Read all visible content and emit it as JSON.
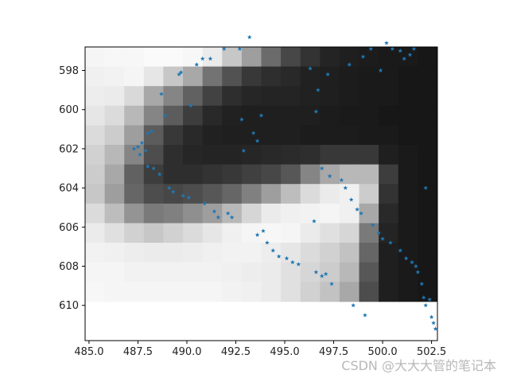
{
  "chart_data": {
    "type": "scatter",
    "title": "",
    "xlabel": "",
    "ylabel": "",
    "xlim": [
      484.8,
      502.8
    ],
    "ylim": [
      611.8,
      596.8
    ],
    "y_inverted": true,
    "grid": false,
    "legend": "none",
    "x_ticks": [
      485.0,
      487.5,
      490.0,
      492.5,
      495.0,
      497.5,
      500.0,
      502.5
    ],
    "x_tick_labels": [
      "485.0",
      "487.5",
      "490.0",
      "492.5",
      "495.0",
      "497.5",
      "500.0",
      "502.5"
    ],
    "y_ticks": [
      598,
      600,
      602,
      604,
      606,
      608,
      610
    ],
    "y_tick_labels": [
      "598",
      "600",
      "602",
      "604",
      "606",
      "608",
      "610"
    ],
    "marker_color": "#1f77b4",
    "marker": "star",
    "background_image": {
      "kind": "grayscale heatmap",
      "x_start": 484.8,
      "y_start": 596.8,
      "cell": 1.0,
      "intensity_rows": [
        [
          0.96,
          0.97,
          0.97,
          0.98,
          0.98,
          0.97,
          0.92,
          0.78,
          0.62,
          0.42,
          0.28,
          0.2,
          0.14,
          0.12,
          0.11,
          0.1,
          0.1,
          0.09
        ],
        [
          0.94,
          0.95,
          0.96,
          0.9,
          0.78,
          0.66,
          0.45,
          0.32,
          0.22,
          0.18,
          0.16,
          0.13,
          0.12,
          0.11,
          0.1,
          0.1,
          0.09,
          0.09
        ],
        [
          0.93,
          0.92,
          0.85,
          0.66,
          0.52,
          0.38,
          0.26,
          0.18,
          0.15,
          0.14,
          0.14,
          0.13,
          0.12,
          0.11,
          0.1,
          0.1,
          0.09,
          0.09
        ],
        [
          0.9,
          0.86,
          0.72,
          0.52,
          0.36,
          0.24,
          0.16,
          0.13,
          0.12,
          0.12,
          0.12,
          0.12,
          0.11,
          0.1,
          0.1,
          0.09,
          0.09,
          0.09
        ],
        [
          0.86,
          0.8,
          0.62,
          0.36,
          0.22,
          0.16,
          0.13,
          0.12,
          0.12,
          0.12,
          0.12,
          0.11,
          0.11,
          0.11,
          0.1,
          0.1,
          0.09,
          0.09
        ],
        [
          0.82,
          0.72,
          0.52,
          0.3,
          0.18,
          0.15,
          0.14,
          0.14,
          0.15,
          0.16,
          0.17,
          0.18,
          0.22,
          0.22,
          0.22,
          0.12,
          0.1,
          0.09
        ],
        [
          0.8,
          0.66,
          0.38,
          0.24,
          0.18,
          0.18,
          0.2,
          0.22,
          0.25,
          0.28,
          0.34,
          0.52,
          0.66,
          0.72,
          0.72,
          0.24,
          0.1,
          0.09
        ],
        [
          0.78,
          0.62,
          0.4,
          0.3,
          0.28,
          0.3,
          0.34,
          0.4,
          0.5,
          0.62,
          0.74,
          0.86,
          0.92,
          0.94,
          0.8,
          0.2,
          0.1,
          0.09
        ],
        [
          0.86,
          0.74,
          0.58,
          0.48,
          0.5,
          0.56,
          0.62,
          0.72,
          0.84,
          0.92,
          0.94,
          0.95,
          0.96,
          0.94,
          0.66,
          0.16,
          0.1,
          0.09
        ],
        [
          0.92,
          0.88,
          0.82,
          0.78,
          0.82,
          0.86,
          0.9,
          0.94,
          0.96,
          0.97,
          0.96,
          0.92,
          0.88,
          0.84,
          0.48,
          0.14,
          0.1,
          0.09
        ],
        [
          0.95,
          0.94,
          0.93,
          0.92,
          0.92,
          0.93,
          0.94,
          0.95,
          0.95,
          0.93,
          0.9,
          0.86,
          0.82,
          0.76,
          0.4,
          0.12,
          0.1,
          0.09
        ],
        [
          0.96,
          0.96,
          0.95,
          0.95,
          0.95,
          0.95,
          0.95,
          0.94,
          0.93,
          0.92,
          0.88,
          0.84,
          0.8,
          0.72,
          0.34,
          0.12,
          0.1,
          0.09
        ],
        [
          0.97,
          0.96,
          0.96,
          0.96,
          0.96,
          0.96,
          0.96,
          0.95,
          0.94,
          0.92,
          0.88,
          0.82,
          0.76,
          0.66,
          0.3,
          0.12,
          0.1,
          0.09
        ]
      ]
    },
    "points": [
      [
        487.3,
        602.0
      ],
      [
        487.5,
        601.9
      ],
      [
        487.7,
        601.7
      ],
      [
        487.6,
        602.3
      ],
      [
        487.9,
        602.1
      ],
      [
        488.0,
        601.2
      ],
      [
        488.2,
        601.1
      ],
      [
        488.0,
        602.9
      ],
      [
        488.3,
        603.0
      ],
      [
        488.6,
        603.3
      ],
      [
        488.7,
        599.2
      ],
      [
        488.9,
        600.3
      ],
      [
        489.1,
        604.0
      ],
      [
        489.3,
        604.2
      ],
      [
        489.6,
        598.2
      ],
      [
        489.7,
        598.1
      ],
      [
        489.8,
        604.4
      ],
      [
        490.1,
        604.5
      ],
      [
        490.2,
        599.8
      ],
      [
        490.5,
        597.7
      ],
      [
        490.8,
        597.4
      ],
      [
        491.2,
        597.4
      ],
      [
        490.9,
        604.8
      ],
      [
        491.4,
        605.2
      ],
      [
        491.6,
        605.5
      ],
      [
        491.9,
        596.9
      ],
      [
        492.1,
        605.3
      ],
      [
        492.3,
        605.5
      ],
      [
        492.7,
        596.9
      ],
      [
        492.8,
        600.5
      ],
      [
        492.9,
        602.1
      ],
      [
        493.2,
        596.3
      ],
      [
        493.4,
        601.2
      ],
      [
        493.6,
        601.6
      ],
      [
        493.6,
        606.4
      ],
      [
        493.8,
        600.3
      ],
      [
        493.9,
        606.2
      ],
      [
        494.1,
        606.8
      ],
      [
        494.4,
        607.2
      ],
      [
        494.7,
        607.5
      ],
      [
        495.1,
        607.6
      ],
      [
        495.4,
        607.8
      ],
      [
        495.7,
        607.9
      ],
      [
        496.3,
        597.9
      ],
      [
        496.5,
        605.7
      ],
      [
        496.6,
        600.1
      ],
      [
        496.6,
        608.3
      ],
      [
        496.7,
        599.0
      ],
      [
        496.9,
        608.5
      ],
      [
        496.9,
        603.0
      ],
      [
        497.1,
        608.4
      ],
      [
        497.2,
        598.2
      ],
      [
        497.3,
        603.4
      ],
      [
        497.4,
        608.9
      ],
      [
        497.9,
        603.6
      ],
      [
        498.1,
        604.0
      ],
      [
        498.3,
        597.7
      ],
      [
        498.4,
        604.6
      ],
      [
        498.5,
        610.0
      ],
      [
        498.7,
        605.1
      ],
      [
        498.9,
        605.3
      ],
      [
        499.0,
        597.3
      ],
      [
        499.1,
        610.5
      ],
      [
        499.4,
        596.9
      ],
      [
        499.5,
        605.9
      ],
      [
        499.8,
        606.3
      ],
      [
        499.9,
        598.0
      ],
      [
        500.0,
        606.6
      ],
      [
        500.2,
        596.6
      ],
      [
        500.4,
        606.8
      ],
      [
        500.5,
        596.9
      ],
      [
        500.9,
        597.0
      ],
      [
        500.9,
        607.2
      ],
      [
        501.1,
        597.4
      ],
      [
        501.2,
        607.6
      ],
      [
        501.4,
        597.2
      ],
      [
        501.5,
        607.8
      ],
      [
        501.6,
        596.9
      ],
      [
        501.7,
        608.0
      ],
      [
        501.8,
        608.3
      ],
      [
        502.0,
        608.9
      ],
      [
        502.1,
        609.6
      ],
      [
        502.2,
        610.0
      ],
      [
        502.4,
        609.7
      ],
      [
        502.5,
        610.6
      ],
      [
        502.6,
        610.9
      ],
      [
        502.7,
        611.2
      ],
      [
        502.2,
        604.0
      ]
    ]
  },
  "watermark": "CSDN @大大大管的笔记本"
}
